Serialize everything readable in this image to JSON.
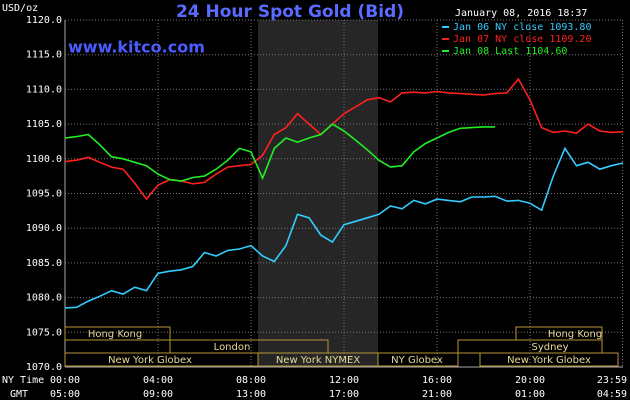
{
  "chart_data": {
    "type": "line",
    "title": "24 Hour Spot Gold (Bid)",
    "unit_label": "USD/oz",
    "timestamp": "January 08, 2016 18:37",
    "watermark": "www.kitco.com",
    "x_axis_label": "NY Time",
    "x2_axis_label": "GMT",
    "x": [
      0,
      0.5,
      1,
      1.5,
      2,
      2.5,
      3,
      3.5,
      4,
      4.5,
      5,
      5.5,
      6,
      6.5,
      7,
      7.5,
      8,
      8.5,
      9,
      9.5,
      10,
      10.5,
      11,
      11.5,
      12,
      12.5,
      13,
      13.5,
      14,
      14.5,
      15,
      15.5,
      16,
      16.5,
      17,
      17.5,
      18,
      18.5,
      19,
      19.5,
      20,
      20.5,
      21,
      21.5,
      22,
      22.5,
      23,
      23.5,
      24
    ],
    "series": [
      {
        "name": "Jan 06 NY close 1093.80",
        "color": "#33ccff",
        "values": [
          1078.5,
          1078.6,
          1079.5,
          1080.2,
          1081,
          1080.5,
          1081.5,
          1081,
          1083.5,
          1083.8,
          1084,
          1084.5,
          1086.5,
          1086,
          1086.8,
          1087,
          1087.5,
          1086,
          1085.2,
          1087.5,
          1092,
          1091.5,
          1089,
          1088,
          1090.5,
          1091,
          1091.5,
          1092,
          1093.2,
          1092.8,
          1094,
          1093.5,
          1094.2,
          1094,
          1093.8,
          1094.5,
          1094.5,
          1094.6,
          1093.9,
          1094,
          1093.6,
          1092.6,
          1097.5,
          1101.5,
          1099,
          1099.5,
          1098.5,
          1099,
          1099.4
        ]
      },
      {
        "name": "Jan 07 NY close 1109.20",
        "color": "#ff2020",
        "values": [
          1099.6,
          1099.8,
          1100.2,
          1099.5,
          1098.8,
          1098.5,
          1096.5,
          1094.2,
          1096.2,
          1097,
          1096.8,
          1096.4,
          1096.6,
          1097.8,
          1098.8,
          1099,
          1099.2,
          1100.5,
          1103.5,
          1104.5,
          1106.5,
          1105,
          1103.5,
          1105,
          1106.5,
          1107.5,
          1108.5,
          1108.8,
          1108.2,
          1109.5,
          1109.6,
          1109.5,
          1109.7,
          1109.5,
          1109.4,
          1109.3,
          1109.2,
          1109.4,
          1109.5,
          1111.5,
          1108.5,
          1104.5,
          1103.8,
          1104,
          1103.7,
          1105,
          1104,
          1103.8,
          1103.9
        ]
      },
      {
        "name": "Jan 08 Last 1104.60",
        "color": "#22ee22",
        "values": [
          1103,
          1103.2,
          1103.5,
          1102,
          1100.3,
          1100,
          1099.5,
          1099,
          1097.8,
          1097,
          1096.8,
          1097.3,
          1097.5,
          1098.5,
          1099.8,
          1101.5,
          1101,
          1097.2,
          1101.5,
          1103,
          1102.4,
          1103,
          1103.5,
          1105,
          1104,
          1102.7,
          1101.3,
          1099.8,
          1098.8,
          1099,
          1101,
          1102.2,
          1103,
          1103.8,
          1104.4,
          1104.5,
          1104.6,
          1104.6,
          null,
          null,
          null,
          null,
          null,
          null,
          null,
          null,
          null,
          null,
          null
        ]
      }
    ],
    "xlim": [
      0,
      24
    ],
    "xticks": [
      {
        "value": 0,
        "label": "00:00"
      },
      {
        "value": 4,
        "label": "04:00"
      },
      {
        "value": 8,
        "label": "08:00"
      },
      {
        "value": 12,
        "label": "12:00"
      },
      {
        "value": 16,
        "label": "16:00"
      },
      {
        "value": 20,
        "label": "20:00"
      },
      {
        "value": 23.98,
        "label": "23:59"
      }
    ],
    "x2ticklabels": [
      "05:00",
      "09:00",
      "13:00",
      "17:00",
      "21:00",
      "01:00",
      "04:59"
    ],
    "ylim": [
      1070,
      1120
    ],
    "yticks": [
      {
        "value": 1070,
        "label": "1070.0"
      },
      {
        "value": 1075,
        "label": "1075.0"
      },
      {
        "value": 1080,
        "label": "1080.0"
      },
      {
        "value": 1085,
        "label": "1085.0"
      },
      {
        "value": 1090,
        "label": "1090.0"
      },
      {
        "value": 1095,
        "label": "1095.0"
      },
      {
        "value": 1100,
        "label": "1100.0"
      },
      {
        "value": 1105,
        "label": "1105.0"
      },
      {
        "value": 1110,
        "label": "1110.0"
      },
      {
        "value": 1115,
        "label": "1115.0"
      },
      {
        "value": 1120,
        "label": "1120.0"
      }
    ],
    "grid": true,
    "sessions": [
      "Hong Kong",
      "London",
      "New York Globex",
      "New York NYMEX",
      "NY Globex",
      "Sydney",
      "Hong Kong",
      "New York Globex"
    ]
  }
}
